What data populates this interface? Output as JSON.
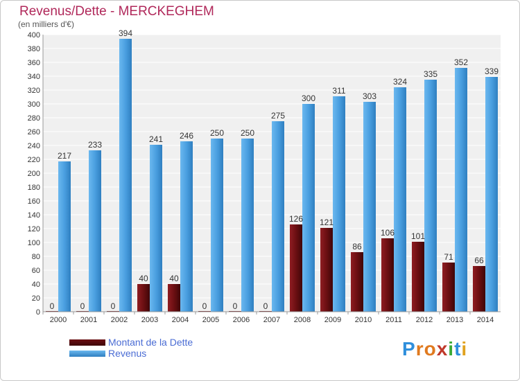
{
  "chart_data": {
    "type": "bar",
    "title": "Revenus/Dette - MERCKEGHEM",
    "subtitle": "(en milliers d'€)",
    "categories": [
      "2000",
      "2001",
      "2002",
      "2003",
      "2004",
      "2005",
      "2006",
      "2007",
      "2008",
      "2009",
      "2010",
      "2011",
      "2012",
      "2013",
      "2014"
    ],
    "series": [
      {
        "name": "Montant de la Dette",
        "color": "#6b0f12",
        "values": [
          0,
          0,
          0,
          40,
          40,
          0,
          0,
          0,
          126,
          121,
          86,
          106,
          101,
          71,
          66
        ]
      },
      {
        "name": "Revenus",
        "color": "#4a9fe0",
        "values": [
          217,
          233,
          394,
          241,
          246,
          250,
          250,
          275,
          300,
          311,
          303,
          324,
          335,
          352,
          339
        ]
      }
    ],
    "yticks": [
      0,
      20,
      40,
      60,
      80,
      100,
      120,
      140,
      160,
      180,
      200,
      220,
      240,
      260,
      280,
      300,
      320,
      340,
      360,
      380,
      400
    ],
    "ylim": [
      0,
      400
    ],
    "grid": true,
    "legend": "bottom-left"
  },
  "logo": {
    "letters": [
      "P",
      "r",
      "o",
      "x",
      "i",
      "t",
      "i"
    ],
    "colors": [
      "#2f8fdc",
      "#e07a1f",
      "#e07a1f",
      "#c0392b",
      "#3aaa35",
      "#2f8fdc",
      "#e0a21f"
    ]
  }
}
